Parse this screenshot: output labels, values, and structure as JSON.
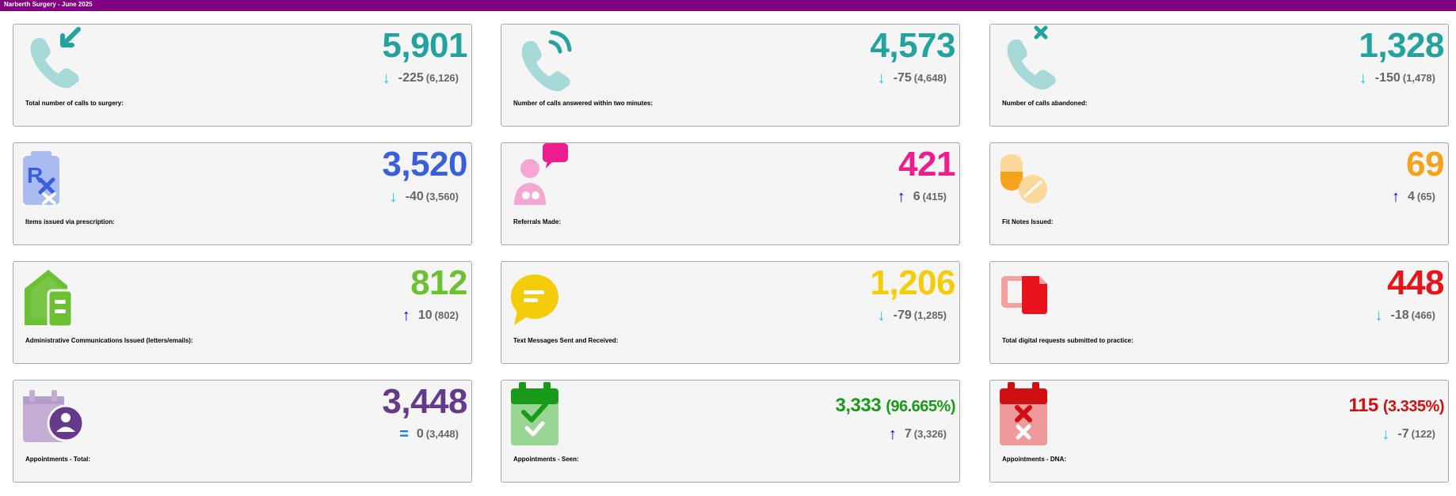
{
  "header": {
    "title": "Narberth Surgery - June 2025",
    "color": "#800080"
  },
  "cards": [
    {
      "label": "Total number of calls to surgery:",
      "value": "5,901",
      "change": "-225",
      "previous": "(6,126)",
      "trend": "down",
      "color": "#22a39f",
      "icon": "phone-incoming-icon"
    },
    {
      "label": "Number of calls answered within two minutes:",
      "value": "4,573",
      "change": "-75",
      "previous": "(4,648)",
      "trend": "down",
      "color": "#22a39f",
      "icon": "phone-answered-icon"
    },
    {
      "label": "Number of calls abandoned:",
      "value": "1,328",
      "change": "-150",
      "previous": "(1,478)",
      "trend": "down",
      "color": "#22a39f",
      "icon": "phone-missed-icon"
    },
    {
      "label": "Items issued via prescription:",
      "value": "3,520",
      "change": "-40",
      "previous": "(3,560)",
      "trend": "down",
      "color": "#3a5fdc",
      "icon": "prescription-icon"
    },
    {
      "label": "Referrals Made:",
      "value": "421",
      "change": "6",
      "previous": "(415)",
      "trend": "up",
      "color": "#ee1c8c",
      "icon": "doctor-chat-icon"
    },
    {
      "label": "Fit Notes Issued:",
      "value": "69",
      "change": "4",
      "previous": "(65)",
      "trend": "up",
      "color": "#f7a21b",
      "icon": "pills-icon"
    },
    {
      "label": "Administrative Communications Issued (letters/emails):",
      "value": "812",
      "change": "10",
      "previous": "(802)",
      "trend": "up",
      "color": "#6cc133",
      "icon": "house-mail-icon"
    },
    {
      "label": "Text Messages Sent and Received:",
      "value": "1,206",
      "change": "-79",
      "previous": "(1,285)",
      "trend": "down",
      "color": "#f4cc0a",
      "icon": "chat-bubble-icon"
    },
    {
      "label": "Total digital requests submitted to practice:",
      "value": "448",
      "change": "-18",
      "previous": "(466)",
      "trend": "down",
      "color": "#e8141c",
      "icon": "digital-request-icon"
    },
    {
      "label": "Appointments - Total:",
      "value": "3,448",
      "change": "0",
      "previous": "(3,448)",
      "trend": "equal",
      "color": "#653a8a",
      "icon": "calendar-person-icon"
    },
    {
      "label": "Appointments - Seen:",
      "value": "3,333",
      "percent": "(96.665%)",
      "change": "7",
      "previous": "(3,326)",
      "trend": "up",
      "color": "#1a9a1a",
      "icon": "calendar-check-icon"
    },
    {
      "label": "Appointments - DNA:",
      "value": "115",
      "percent": "(3.335%)",
      "change": "-7",
      "previous": "(122)",
      "trend": "down",
      "color": "#d01010",
      "icon": "calendar-cross-icon"
    }
  ],
  "trend_symbols": {
    "down": "↓",
    "up": "↑",
    "equal": "="
  }
}
